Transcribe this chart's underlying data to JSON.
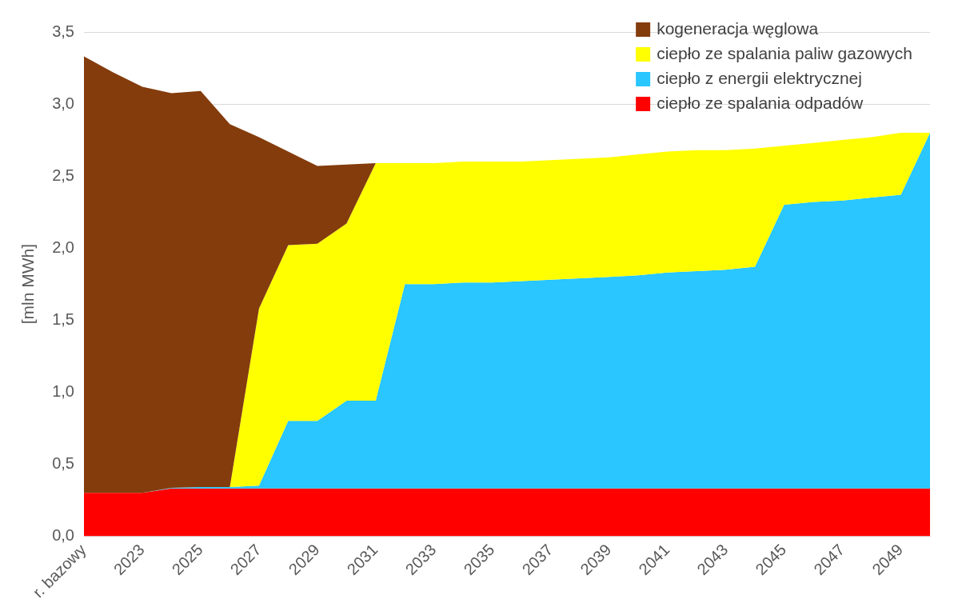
{
  "chart_data": {
    "type": "area",
    "ylabel": "[mln MWh]",
    "stacked": true,
    "grid": "y",
    "legend": "top right",
    "categories": [
      "r. bazowy",
      null,
      "2023",
      null,
      "2025",
      null,
      "2027",
      null,
      "2029",
      null,
      "2031",
      null,
      "2033",
      null,
      "2035",
      null,
      "2037",
      null,
      "2039",
      null,
      "2041",
      null,
      "2043",
      null,
      "2045",
      null,
      "2047",
      null,
      "2049",
      null
    ],
    "ylim": [
      0,
      3.5
    ],
    "yticks": [
      {
        "value": 0,
        "label": "0,0"
      },
      {
        "value": 0.5,
        "label": "0,5"
      },
      {
        "value": 1,
        "label": "1,0"
      },
      {
        "value": 1.5,
        "label": "1,5"
      },
      {
        "value": 2,
        "label": "2,0"
      },
      {
        "value": 2.5,
        "label": "2,5"
      },
      {
        "value": 3,
        "label": "3,0"
      },
      {
        "value": 3.5,
        "label": "3,5"
      }
    ],
    "series": [
      {
        "name": "ciepło ze spalania odpadów",
        "color": "#ff0000",
        "values": [
          0.3,
          0.3,
          0.3,
          0.33,
          0.33,
          0.33,
          0.33,
          0.33,
          0.33,
          0.33,
          0.33,
          0.33,
          0.33,
          0.33,
          0.33,
          0.33,
          0.33,
          0.33,
          0.33,
          0.33,
          0.33,
          0.33,
          0.33,
          0.33,
          0.33,
          0.33,
          0.33,
          0.33,
          0.33,
          0.33
        ]
      },
      {
        "name": "ciepło z energii elektrycznej",
        "color": "#29c6ff",
        "values": [
          0,
          0,
          0,
          0.005,
          0.01,
          0.01,
          0.02,
          0.47,
          0.47,
          0.61,
          0.61,
          1.42,
          1.42,
          1.43,
          1.43,
          1.44,
          1.45,
          1.46,
          1.47,
          1.48,
          1.5,
          1.51,
          1.52,
          1.54,
          1.97,
          1.99,
          2.0,
          2.02,
          2.04,
          2.47
        ]
      },
      {
        "name": "ciepło ze spalania paliw gazowych",
        "color": "#ffff00",
        "values": [
          null,
          null,
          null,
          null,
          null,
          0,
          1.23,
          1.22,
          1.23,
          1.23,
          1.65,
          0.84,
          0.84,
          0.84,
          0.84,
          0.83,
          0.83,
          0.83,
          0.83,
          0.84,
          0.84,
          0.84,
          0.83,
          0.82,
          0.41,
          0.41,
          0.42,
          0.42,
          0.43,
          0
        ]
      },
      {
        "name": "kogeneracja węglowa",
        "color": "#843c0c",
        "values": [
          3.03,
          2.92,
          2.82,
          2.74,
          2.75,
          2.52,
          1.19,
          0.65,
          0.54,
          0.41,
          0,
          null,
          null,
          null,
          null,
          null,
          null,
          null,
          null,
          null,
          null,
          null,
          null,
          null,
          null,
          null,
          null,
          null,
          null,
          null
        ]
      }
    ]
  }
}
